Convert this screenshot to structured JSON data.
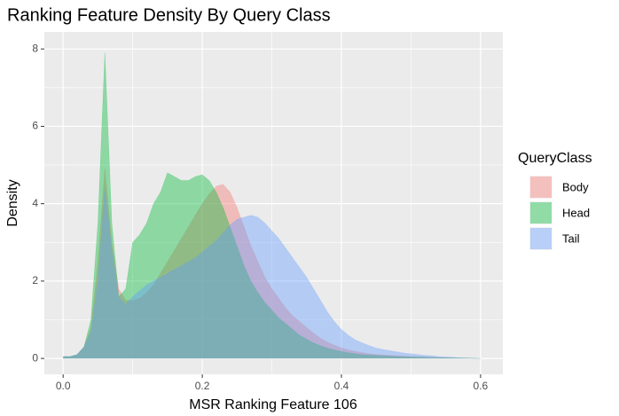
{
  "chart_data": {
    "type": "density",
    "title": "Ranking Feature Density By Query Class",
    "xlabel": "MSR Ranking Feature 106",
    "ylabel": "Density",
    "legend_title": "QueryClass",
    "legend": "right",
    "grid": true,
    "xlim": [
      -0.027,
      0.632
    ],
    "ylim": [
      -0.41,
      8.44
    ],
    "xticks": [
      {
        "value": 0,
        "label": "0.0"
      },
      0.2,
      0.4,
      0.6
    ],
    "yticks": [
      0,
      2,
      4,
      6,
      8
    ],
    "xminor": [
      0.1,
      0.3,
      0.5
    ],
    "yminor": [
      1,
      3,
      5,
      7
    ],
    "x": [
      0,
      0.01,
      0.02,
      0.03,
      0.04,
      0.05,
      0.06,
      0.07,
      0.08,
      0.09,
      0.1,
      0.11,
      0.12,
      0.13,
      0.14,
      0.15,
      0.16,
      0.17,
      0.18,
      0.19,
      0.2,
      0.21,
      0.22,
      0.23,
      0.24,
      0.25,
      0.26,
      0.27,
      0.28,
      0.29,
      0.3,
      0.31,
      0.32,
      0.33,
      0.34,
      0.35,
      0.36,
      0.37,
      0.38,
      0.39,
      0.4,
      0.41,
      0.42,
      0.43,
      0.44,
      0.45,
      0.46,
      0.47,
      0.48,
      0.49,
      0.5,
      0.51,
      0.52,
      0.53,
      0.54,
      0.55,
      0.56,
      0.57,
      0.58,
      0.59,
      0.6
    ],
    "series": [
      {
        "name": "Body",
        "color": "#F8766D",
        "values": [
          0.05,
          0.05,
          0.1,
          0.3,
          0.8,
          2.5,
          4.9,
          3.0,
          1.8,
          1.5,
          1.5,
          1.55,
          1.7,
          1.9,
          2.2,
          2.5,
          2.8,
          3.1,
          3.4,
          3.7,
          4.0,
          4.25,
          4.45,
          4.5,
          4.3,
          3.9,
          3.4,
          2.9,
          2.5,
          2.1,
          1.8,
          1.55,
          1.3,
          1.1,
          0.95,
          0.8,
          0.65,
          0.52,
          0.42,
          0.34,
          0.27,
          0.22,
          0.18,
          0.15,
          0.12,
          0.1,
          0.09,
          0.08,
          0.07,
          0.06,
          0.05,
          0.045,
          0.04,
          0.03,
          0.025,
          0.02,
          0.015,
          0.01,
          0.01,
          0.005,
          0
        ]
      },
      {
        "name": "Head",
        "color": "#00BA38",
        "values": [
          0.05,
          0.05,
          0.1,
          0.3,
          1.0,
          3.5,
          7.9,
          3.5,
          1.6,
          1.8,
          3.0,
          3.2,
          3.5,
          4.0,
          4.3,
          4.8,
          4.7,
          4.6,
          4.6,
          4.7,
          4.75,
          4.6,
          4.3,
          3.9,
          3.4,
          2.9,
          2.4,
          2.0,
          1.7,
          1.45,
          1.25,
          1.05,
          0.9,
          0.75,
          0.6,
          0.5,
          0.4,
          0.33,
          0.27,
          0.22,
          0.18,
          0.15,
          0.12,
          0.1,
          0.09,
          0.08,
          0.07,
          0.06,
          0.05,
          0.045,
          0.04,
          0.035,
          0.03,
          0.025,
          0.02,
          0.02,
          0.015,
          0.01,
          0.01,
          0.005,
          0
        ]
      },
      {
        "name": "Tail",
        "color": "#619CFF",
        "values": [
          0.05,
          0.05,
          0.1,
          0.3,
          0.7,
          2.0,
          4.4,
          2.8,
          1.6,
          1.4,
          1.6,
          1.75,
          1.9,
          2.0,
          2.1,
          2.2,
          2.3,
          2.4,
          2.5,
          2.6,
          2.75,
          2.9,
          3.05,
          3.25,
          3.45,
          3.6,
          3.65,
          3.7,
          3.65,
          3.5,
          3.3,
          3.1,
          2.85,
          2.6,
          2.35,
          2.1,
          1.8,
          1.5,
          1.2,
          0.95,
          0.75,
          0.6,
          0.48,
          0.4,
          0.33,
          0.27,
          0.23,
          0.2,
          0.17,
          0.14,
          0.12,
          0.1,
          0.08,
          0.07,
          0.05,
          0.04,
          0.03,
          0.02,
          0.01,
          0.005,
          0
        ]
      }
    ]
  }
}
